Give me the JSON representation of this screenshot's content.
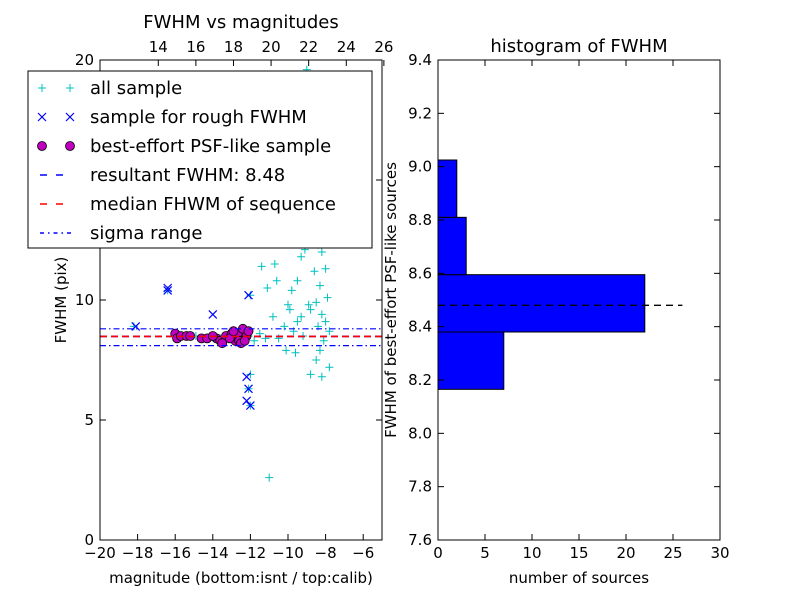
{
  "chart_data": [
    {
      "type": "scatter",
      "title": "FWHM vs magnitudes",
      "xlabel": "magnitude (bottom:isnt / top:calib)",
      "ylabel": "FWHM (pix)",
      "xlim": [
        -20,
        -5
      ],
      "ylim": [
        0,
        20
      ],
      "xticks": [
        -20,
        -18,
        -16,
        -14,
        -12,
        -10,
        -8,
        -6
      ],
      "xtick_labels": [
        "−20",
        "−18",
        "−16",
        "−14",
        "−12",
        "−10",
        "−8",
        "−6"
      ],
      "yticks": [
        0,
        5,
        10,
        15,
        20
      ],
      "ytick_labels": [
        "0",
        "5",
        "10",
        "15",
        "20"
      ],
      "top_axis": {
        "ticks": [
          14,
          16,
          18,
          20,
          22,
          24,
          26
        ],
        "offset": 30.9
      },
      "legend_location": "upper-left",
      "series": [
        {
          "name": "all sample",
          "marker": "+",
          "color": "#00bfbf",
          "points": [
            [
              -18.2,
              8.9
            ],
            [
              -16.4,
              10.4
            ],
            [
              -15.9,
              8.6
            ],
            [
              -15.4,
              8.5
            ],
            [
              -14.9,
              8.5
            ],
            [
              -14.5,
              8.4
            ],
            [
              -14.0,
              8.5
            ],
            [
              -13.6,
              8.4
            ],
            [
              -13.2,
              8.4
            ],
            [
              -12.8,
              8.5
            ],
            [
              -12.4,
              8.6
            ],
            [
              -12.1,
              8.5
            ],
            [
              -12.0,
              10.2
            ],
            [
              -12.0,
              6.9
            ],
            [
              -12.1,
              6.3
            ],
            [
              -12.0,
              5.6
            ],
            [
              -11.8,
              8.3
            ],
            [
              -11.5,
              8.6
            ],
            [
              -11.2,
              8.4
            ],
            [
              -11.0,
              2.6
            ],
            [
              -11.4,
              11.4
            ],
            [
              -11.1,
              10.5
            ],
            [
              -10.8,
              9.3
            ],
            [
              -10.7,
              11.5
            ],
            [
              -10.3,
              13.4
            ],
            [
              -10.5,
              8.4
            ],
            [
              -10.1,
              7.9
            ],
            [
              -10.0,
              9.8
            ],
            [
              -9.8,
              12.6
            ],
            [
              -9.7,
              8.7
            ],
            [
              -9.6,
              7.8
            ],
            [
              -9.5,
              10.8
            ],
            [
              -9.4,
              13.4
            ],
            [
              -9.3,
              11.8
            ],
            [
              -9.2,
              8.5
            ],
            [
              -9.1,
              14.2
            ],
            [
              -9.0,
              19.6
            ],
            [
              -9.0,
              16.2
            ],
            [
              -8.9,
              18.7
            ],
            [
              -8.8,
              9.6
            ],
            [
              -8.7,
              17.3
            ],
            [
              -8.7,
              12.8
            ],
            [
              -8.6,
              15.4
            ],
            [
              -8.6,
              11.2
            ],
            [
              -8.5,
              13.9
            ],
            [
              -8.5,
              9.9
            ],
            [
              -8.5,
              7.5
            ],
            [
              -8.4,
              16.8
            ],
            [
              -8.4,
              12.3
            ],
            [
              -8.4,
              8.9
            ],
            [
              -8.3,
              14.6
            ],
            [
              -8.3,
              10.6
            ],
            [
              -8.3,
              7.9
            ],
            [
              -8.2,
              12.0
            ],
            [
              -8.2,
              9.4
            ],
            [
              -8.2,
              6.8
            ],
            [
              -8.1,
              13.3
            ],
            [
              -8.1,
              8.3
            ],
            [
              -8.0,
              11.3
            ],
            [
              -8.0,
              9.1
            ],
            [
              -7.9,
              10.1
            ],
            [
              -7.8,
              8.7
            ],
            [
              -7.8,
              7.2
            ],
            [
              -9.5,
              9.1
            ],
            [
              -9.9,
              9.6
            ],
            [
              -10.2,
              8.9
            ],
            [
              -9.3,
              9.3
            ],
            [
              -8.9,
              9.8
            ],
            [
              -9.6,
              13.8
            ],
            [
              -9.8,
              10.4
            ],
            [
              -8.6,
              19.2
            ],
            [
              -9.2,
              15.6
            ],
            [
              -10.6,
              10.8
            ],
            [
              -8.8,
              6.9
            ],
            [
              -8.0,
              14.4
            ],
            [
              -9.1,
              12.1
            ]
          ]
        },
        {
          "name": "sample for rough FWHM",
          "marker": "x",
          "color": "#0000ff",
          "points": [
            [
              -18.1,
              8.9
            ],
            [
              -16.4,
              10.4
            ],
            [
              -16.4,
              10.5
            ],
            [
              -14.0,
              9.4
            ],
            [
              -12.1,
              10.2
            ],
            [
              -12.2,
              6.8
            ],
            [
              -12.1,
              6.3
            ],
            [
              -12.2,
              5.8
            ],
            [
              -12.0,
              5.6
            ]
          ]
        },
        {
          "name": "best-effort PSF-like sample",
          "marker": "o",
          "color": "#bf00bf",
          "points": [
            [
              -16.0,
              8.6
            ],
            [
              -15.9,
              8.4
            ],
            [
              -15.7,
              8.5
            ],
            [
              -15.4,
              8.5
            ],
            [
              -15.2,
              8.5
            ],
            [
              -14.6,
              8.4
            ],
            [
              -14.3,
              8.4
            ],
            [
              -13.8,
              8.4
            ],
            [
              -13.6,
              8.3
            ],
            [
              -13.3,
              8.5
            ],
            [
              -13.0,
              8.6
            ],
            [
              -12.8,
              8.3
            ],
            [
              -12.6,
              8.6
            ],
            [
              -12.4,
              8.8
            ],
            [
              -12.3,
              8.4
            ],
            [
              -12.2,
              8.5
            ],
            [
              -12.1,
              8.7
            ],
            [
              -12.6,
              8.3
            ],
            [
              -13.1,
              8.4
            ],
            [
              -12.9,
              8.7
            ],
            [
              -14.0,
              8.5
            ],
            [
              -13.5,
              8.2
            ],
            [
              -12.5,
              8.2
            ],
            [
              -12.3,
              8.3
            ]
          ]
        }
      ],
      "hlines": [
        {
          "name": "resultant FWHM: 8.48",
          "y": 8.48,
          "color": "#0000ff",
          "style": "dashed"
        },
        {
          "name": "median FHWM of sequence",
          "y": 8.48,
          "color": "#ff0000",
          "style": "dashed"
        },
        {
          "name": "sigma range",
          "y": 8.8,
          "color": "#0000ff",
          "style": "dashdot"
        },
        {
          "name": "",
          "y": 8.1,
          "color": "#0000ff",
          "style": "dashdot"
        }
      ]
    },
    {
      "type": "bar",
      "orientation": "horizontal",
      "title": "histogram of FWHM",
      "xlabel": "number of sources",
      "ylabel": "FWHM of best-effort PSF-like sources",
      "xlim": [
        0,
        30
      ],
      "ylim": [
        7.6,
        9.4
      ],
      "xticks": [
        0,
        5,
        10,
        15,
        20,
        25,
        30
      ],
      "yticks": [
        7.6,
        7.8,
        8.0,
        8.2,
        8.4,
        8.6,
        8.8,
        9.0,
        9.2,
        9.4
      ],
      "ytick_labels": [
        "7.6",
        "7.8",
        "8.0",
        "8.2",
        "8.4",
        "8.6",
        "8.8",
        "9.0",
        "9.2",
        "9.4"
      ],
      "bar_color": "#0000ff",
      "bins": [
        {
          "from": 8.165,
          "to": 8.38,
          "count": 7
        },
        {
          "from": 8.38,
          "to": 8.595,
          "count": 22
        },
        {
          "from": 8.595,
          "to": 8.81,
          "count": 3
        },
        {
          "from": 8.81,
          "to": 9.025,
          "count": 2
        }
      ],
      "reference_line": {
        "y": 8.48,
        "x_to": 26,
        "style": "dashed",
        "color": "#000000"
      }
    }
  ]
}
